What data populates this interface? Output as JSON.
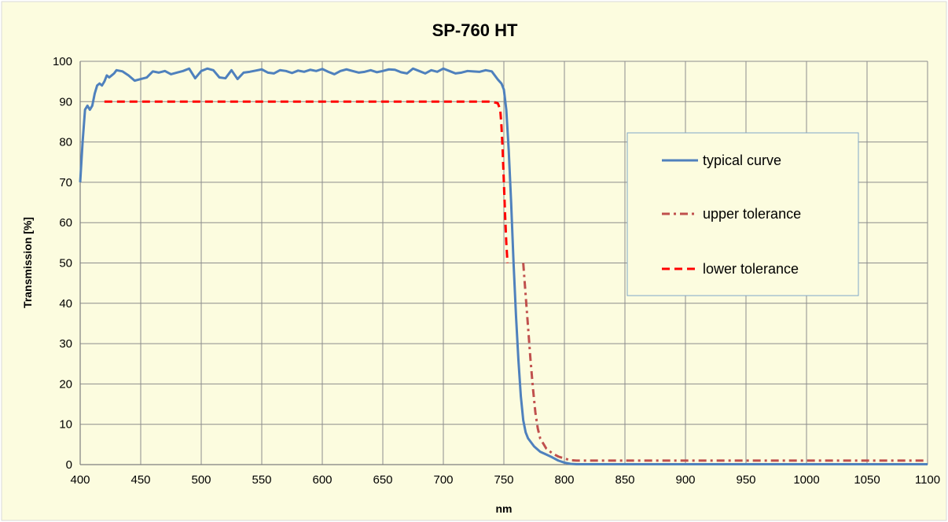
{
  "chart_data": {
    "type": "line",
    "title": "SP-760 HT",
    "xlabel": "nm",
    "ylabel": "Transmission [%]",
    "xlim": [
      400,
      1100
    ],
    "ylim": [
      0,
      100
    ],
    "xticks": [
      400,
      450,
      500,
      550,
      600,
      650,
      700,
      750,
      800,
      850,
      900,
      950,
      1000,
      1050,
      1100
    ],
    "yticks": [
      0,
      10,
      20,
      30,
      40,
      50,
      60,
      70,
      80,
      90,
      100
    ],
    "grid": true,
    "legend_position": "right",
    "colors": {
      "background": "#fcfcdf",
      "plot_area": "#fcfcdf",
      "grid": "#8c8c8c",
      "legend_border": "#7fa7c9"
    },
    "series": [
      {
        "name": "typical curve",
        "color": "#4f81bd",
        "style": "solid",
        "points": [
          [
            400,
            70
          ],
          [
            402,
            80
          ],
          [
            404,
            88
          ],
          [
            406,
            89
          ],
          [
            408,
            88
          ],
          [
            410,
            89
          ],
          [
            412,
            92
          ],
          [
            414,
            94
          ],
          [
            416,
            94.5
          ],
          [
            418,
            94
          ],
          [
            420,
            95
          ],
          [
            422,
            96.5
          ],
          [
            424,
            96
          ],
          [
            426,
            96.5
          ],
          [
            428,
            97
          ],
          [
            430,
            97.8
          ],
          [
            435,
            97.5
          ],
          [
            440,
            96.5
          ],
          [
            445,
            95.2
          ],
          [
            450,
            95.6
          ],
          [
            455,
            96
          ],
          [
            460,
            97.5
          ],
          [
            465,
            97.2
          ],
          [
            470,
            97.6
          ],
          [
            475,
            96.8
          ],
          [
            480,
            97.2
          ],
          [
            485,
            97.6
          ],
          [
            490,
            98.2
          ],
          [
            495,
            95.8
          ],
          [
            500,
            97.6
          ],
          [
            505,
            98.2
          ],
          [
            510,
            97.8
          ],
          [
            515,
            96
          ],
          [
            520,
            95.8
          ],
          [
            525,
            97.8
          ],
          [
            530,
            95.6
          ],
          [
            535,
            97.2
          ],
          [
            540,
            97.4
          ],
          [
            545,
            97.7
          ],
          [
            550,
            98
          ],
          [
            555,
            97.2
          ],
          [
            560,
            97
          ],
          [
            565,
            97.8
          ],
          [
            570,
            97.6
          ],
          [
            575,
            97.1
          ],
          [
            580,
            97.7
          ],
          [
            585,
            97.4
          ],
          [
            590,
            97.9
          ],
          [
            595,
            97.6
          ],
          [
            600,
            98.1
          ],
          [
            605,
            97.4
          ],
          [
            610,
            96.8
          ],
          [
            615,
            97.6
          ],
          [
            620,
            98
          ],
          [
            625,
            97.6
          ],
          [
            630,
            97.2
          ],
          [
            635,
            97.4
          ],
          [
            640,
            97.8
          ],
          [
            645,
            97.3
          ],
          [
            650,
            97.6
          ],
          [
            655,
            98
          ],
          [
            660,
            97.9
          ],
          [
            665,
            97.3
          ],
          [
            670,
            97
          ],
          [
            675,
            98.2
          ],
          [
            680,
            97.6
          ],
          [
            685,
            97
          ],
          [
            690,
            97.8
          ],
          [
            695,
            97.4
          ],
          [
            700,
            98.2
          ],
          [
            705,
            97.6
          ],
          [
            710,
            97
          ],
          [
            715,
            97.2
          ],
          [
            720,
            97.6
          ],
          [
            725,
            97.5
          ],
          [
            730,
            97.4
          ],
          [
            735,
            97.8
          ],
          [
            740,
            97.5
          ],
          [
            745,
            95.5
          ],
          [
            748,
            94.5
          ],
          [
            750,
            93
          ],
          [
            752,
            88
          ],
          [
            754,
            78
          ],
          [
            756,
            65
          ],
          [
            758,
            50
          ],
          [
            760,
            37
          ],
          [
            762,
            26
          ],
          [
            764,
            17
          ],
          [
            766,
            11
          ],
          [
            768,
            8
          ],
          [
            770,
            6.5
          ],
          [
            775,
            4.5
          ],
          [
            780,
            3.2
          ],
          [
            785,
            2.5
          ],
          [
            790,
            1.8
          ],
          [
            795,
            1
          ],
          [
            800,
            0.5
          ],
          [
            805,
            0.2
          ],
          [
            810,
            0.1
          ],
          [
            830,
            0.1
          ],
          [
            900,
            0.1
          ],
          [
            1000,
            0.1
          ],
          [
            1100,
            0.1
          ]
        ]
      },
      {
        "name": "upper tolerance",
        "color": "#c0504d",
        "style": "dashdot",
        "points": [
          [
            766,
            50
          ],
          [
            768,
            42
          ],
          [
            770,
            34
          ],
          [
            772,
            26
          ],
          [
            774,
            19
          ],
          [
            776,
            13
          ],
          [
            778,
            9
          ],
          [
            780,
            6.5
          ],
          [
            785,
            4
          ],
          [
            790,
            2.8
          ],
          [
            795,
            2
          ],
          [
            800,
            1.5
          ],
          [
            805,
            1.1
          ],
          [
            810,
            1
          ],
          [
            900,
            1
          ],
          [
            1000,
            1
          ],
          [
            1100,
            1
          ]
        ]
      },
      {
        "name": "lower tolerance",
        "color": "#ff0000",
        "style": "dashed",
        "points": [
          [
            420,
            90
          ],
          [
            500,
            90
          ],
          [
            600,
            90
          ],
          [
            700,
            90
          ],
          [
            740,
            90
          ],
          [
            745,
            89.6
          ],
          [
            747,
            88
          ],
          [
            748,
            84
          ],
          [
            749,
            78
          ],
          [
            750,
            70
          ],
          [
            751,
            62
          ],
          [
            752,
            55
          ],
          [
            753,
            50
          ]
        ]
      }
    ]
  }
}
